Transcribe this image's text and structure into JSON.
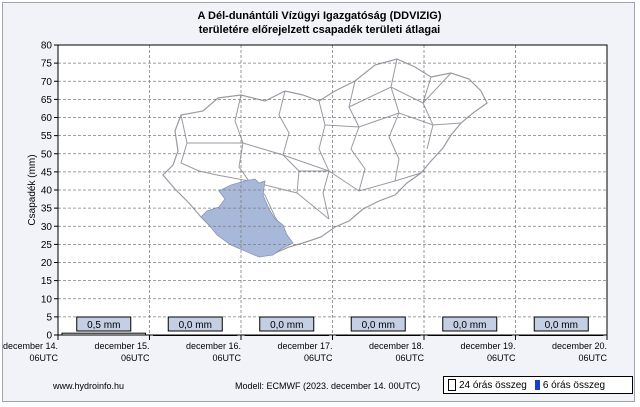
{
  "title": {
    "line1": "A Dél-dunántúli Vízügyi Igazgatóság (DDVIZIG)",
    "line2": "területére előrejelzett csapadék területi átlagai"
  },
  "footer": {
    "site": "www.hydroinfo.hu",
    "model": "Modell: ECMWF (2023. december 14. 00UTC)"
  },
  "legend": {
    "sum24": "24 órás összeg",
    "sum6": "6 órás összeg"
  },
  "colors": {
    "grid": "#7f7f7f",
    "plot_bg": "#ffffff",
    "region_fill": "#a8b8d8",
    "map_outline": "#9a9aa4",
    "daily_box_fill": "#c5cfe3",
    "six_hour_bar": "#1e3cc8"
  },
  "chart_data": {
    "type": "bar",
    "ylabel": "Csapadék (mm)",
    "ylim": [
      0,
      80
    ],
    "yticks": [
      0,
      5,
      10,
      15,
      20,
      25,
      30,
      35,
      40,
      45,
      50,
      55,
      60,
      65,
      70,
      75,
      80
    ],
    "x_ticks": [
      {
        "date": "december 14.",
        "time": "06UTC"
      },
      {
        "date": "december 15.",
        "time": "06UTC"
      },
      {
        "date": "december 16.",
        "time": "06UTC"
      },
      {
        "date": "december 17.",
        "time": "06UTC"
      },
      {
        "date": "december 18.",
        "time": "06UTC"
      },
      {
        "date": "december 19.",
        "time": "06UTC"
      },
      {
        "date": "december 20.",
        "time": "06UTC"
      }
    ],
    "series": [
      {
        "name": "24 órás összeg",
        "values": [
          0.5,
          0.0,
          0.0,
          0.0,
          0.0,
          0.0
        ]
      }
    ],
    "daily_labels": [
      "0,5 mm",
      "0,0 mm",
      "0,0 mm",
      "0,0 mm",
      "0,0 mm",
      "0,0 mm"
    ],
    "grid": true,
    "legend_position": "bottom-right"
  }
}
